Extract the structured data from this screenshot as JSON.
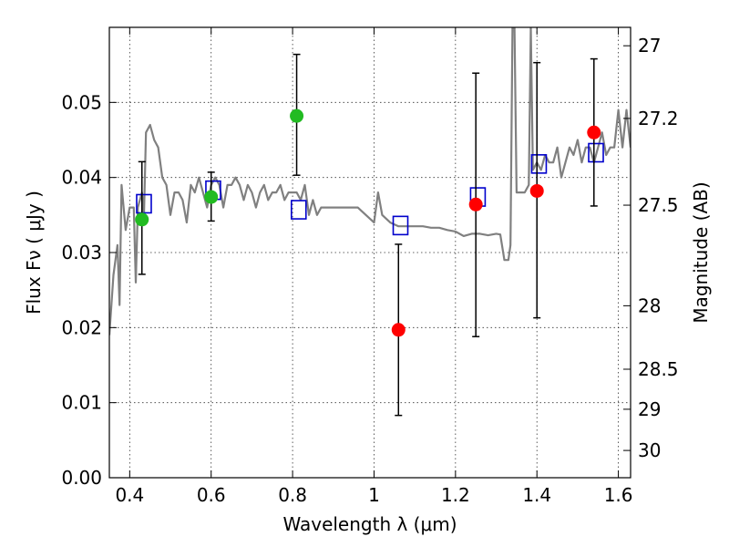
{
  "chart_data": {
    "type": "scatter",
    "title": "",
    "xlabel": "Wavelength  λ (μm)",
    "ylabel": "Flux  Fν  ( μJy )",
    "y2label": "Magnitude (AB)",
    "xlim": [
      0.35,
      1.63
    ],
    "ylim": [
      0.0,
      0.06
    ],
    "grid": true,
    "colors": {
      "spectrum": "#808080",
      "detected": "#22bb22",
      "undetected": "#ff0000",
      "model": "#0000cc",
      "errorbar": "#000000"
    },
    "x_ticks": [
      0.4,
      0.6,
      0.8,
      1.0,
      1.2,
      1.4,
      1.6
    ],
    "x_tick_labels": [
      "0.4",
      "0.6",
      "0.8",
      "1",
      "1.2",
      "1.4",
      "1.6"
    ],
    "y_ticks": [
      0.0,
      0.01,
      0.02,
      0.03,
      0.04,
      0.05
    ],
    "y_tick_labels": [
      "0.00",
      "0.01",
      "0.02",
      "0.03",
      "0.04",
      "0.05"
    ],
    "y2_ticks": [
      {
        "mag": 27.0,
        "label": "27"
      },
      {
        "mag": 27.2,
        "label": "27.2"
      },
      {
        "mag": 27.5,
        "label": "27.5"
      },
      {
        "mag": 28.0,
        "label": "28"
      },
      {
        "mag": 28.5,
        "label": "28.5"
      },
      {
        "mag": 29.0,
        "label": "29"
      },
      {
        "mag": 30.0,
        "label": "30"
      }
    ],
    "series": [
      {
        "kind": "spectrum",
        "x": [
          0.35,
          0.36,
          0.37,
          0.375,
          0.38,
          0.39,
          0.4,
          0.41,
          0.415,
          0.42,
          0.43,
          0.435,
          0.44,
          0.45,
          0.46,
          0.47,
          0.48,
          0.49,
          0.5,
          0.51,
          0.52,
          0.53,
          0.54,
          0.55,
          0.56,
          0.57,
          0.58,
          0.59,
          0.6,
          0.61,
          0.62,
          0.63,
          0.64,
          0.65,
          0.66,
          0.67,
          0.68,
          0.69,
          0.7,
          0.71,
          0.72,
          0.73,
          0.74,
          0.75,
          0.76,
          0.77,
          0.78,
          0.79,
          0.8,
          0.81,
          0.82,
          0.83,
          0.84,
          0.85,
          0.86,
          0.87,
          0.88,
          0.9,
          0.92,
          0.94,
          0.96,
          0.98,
          1.0,
          1.005,
          1.01,
          1.02,
          1.04,
          1.06,
          1.08,
          1.1,
          1.12,
          1.14,
          1.16,
          1.18,
          1.2,
          1.22,
          1.24,
          1.26,
          1.28,
          1.3,
          1.31,
          1.32,
          1.33,
          1.335,
          1.34,
          1.345,
          1.35,
          1.36,
          1.37,
          1.38,
          1.385,
          1.39,
          1.4,
          1.41,
          1.42,
          1.43,
          1.44,
          1.45,
          1.46,
          1.47,
          1.48,
          1.49,
          1.5,
          1.51,
          1.52,
          1.53,
          1.54,
          1.55,
          1.56,
          1.57,
          1.58,
          1.59,
          1.6,
          1.61,
          1.62,
          1.63
        ],
        "y": [
          0.019,
          0.027,
          0.031,
          0.023,
          0.039,
          0.033,
          0.036,
          0.036,
          0.026,
          0.036,
          0.038,
          0.035,
          0.046,
          0.047,
          0.045,
          0.044,
          0.04,
          0.039,
          0.035,
          0.038,
          0.038,
          0.037,
          0.034,
          0.039,
          0.038,
          0.04,
          0.038,
          0.036,
          0.039,
          0.04,
          0.039,
          0.036,
          0.039,
          0.039,
          0.04,
          0.039,
          0.037,
          0.039,
          0.038,
          0.036,
          0.038,
          0.039,
          0.037,
          0.038,
          0.038,
          0.039,
          0.037,
          0.038,
          0.038,
          0.038,
          0.037,
          0.039,
          0.035,
          0.037,
          0.035,
          0.036,
          0.036,
          0.036,
          0.036,
          0.036,
          0.036,
          0.035,
          0.034,
          0.036,
          0.038,
          0.035,
          0.034,
          0.0335,
          0.0335,
          0.0335,
          0.0335,
          0.0333,
          0.0333,
          0.033,
          0.0328,
          0.0322,
          0.0325,
          0.0325,
          0.0323,
          0.0325,
          0.0324,
          0.029,
          0.029,
          0.031,
          0.06,
          0.06,
          0.038,
          0.038,
          0.038,
          0.039,
          0.06,
          0.041,
          0.042,
          0.041,
          0.043,
          0.042,
          0.042,
          0.044,
          0.04,
          0.042,
          0.044,
          0.043,
          0.045,
          0.042,
          0.044,
          0.044,
          0.042,
          0.044,
          0.046,
          0.043,
          0.044,
          0.044,
          0.049,
          0.044,
          0.049,
          0.044
        ]
      },
      {
        "kind": "detected",
        "x": [
          0.43,
          0.6,
          0.81
        ],
        "y": [
          0.0344,
          0.0374,
          0.0482
        ],
        "yerr_low": [
          0.0271,
          0.0342,
          0.0403
        ],
        "yerr_high": [
          0.0421,
          0.0407,
          0.0564
        ]
      },
      {
        "kind": "undetected",
        "x": [
          1.06,
          1.25,
          1.4,
          1.54
        ],
        "y": [
          0.0197,
          0.0364,
          0.0382,
          0.046
        ],
        "yerr_low": [
          0.0083,
          0.0188,
          0.0213,
          0.0362
        ],
        "yerr_high": [
          0.0311,
          0.0539,
          0.0553,
          0.0558
        ]
      },
      {
        "kind": "model",
        "x": [
          0.435,
          0.605,
          0.815,
          1.065,
          1.255,
          1.405,
          1.545
        ],
        "y": [
          0.0365,
          0.0383,
          0.0357,
          0.0336,
          0.0374,
          0.0418,
          0.0433
        ]
      }
    ]
  }
}
